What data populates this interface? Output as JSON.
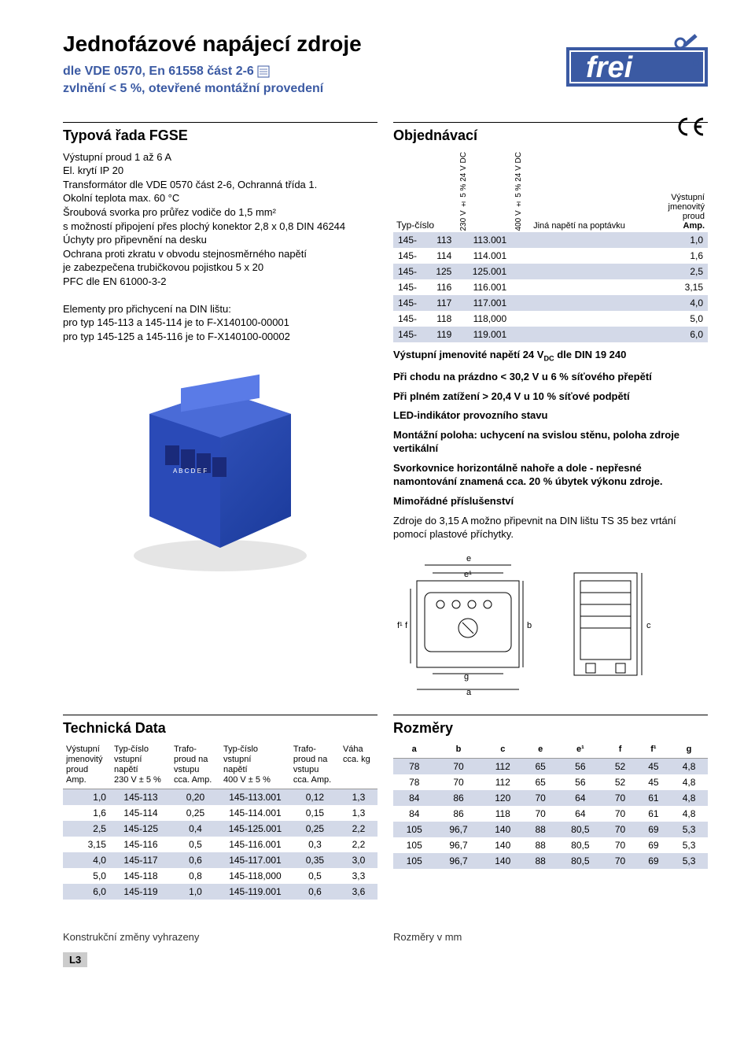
{
  "header": {
    "title": "Jednofázové napájecí zdroje",
    "subtitle1": "dle VDE 0570, En 61558 část 2-6",
    "subtitle2": "zvlnění < 5 %, otevřené montážní provedení"
  },
  "left": {
    "section_title": "Typová řada FGSE",
    "lines": [
      "Výstupní proud 1 až 6 A",
      "El. krytí IP 20",
      "Transformátor dle VDE 0570 část 2-6, Ochranná třída 1.",
      "Okolní teplota max. 60 °C",
      "Šroubová svorka pro průřez vodiče do 1,5 mm²",
      "s možností připojení přes plochý konektor 2,8 x 0,8 DIN 46244",
      "Úchyty pro připevnění na desku",
      "Ochrana proti zkratu v obvodu stejnosměrného napětí",
      "je zabezpečena trubičkovou pojistkou 5 x 20",
      "PFC dle EN 61000-3-2",
      "",
      "Elementy pro přichycení na DIN lištu:",
      "pro typ 145-113 a 145-114 je to F-X140100-00001",
      "pro typ 145-125 a 145-116 je to F-X140100-00002"
    ]
  },
  "right": {
    "section_title": "Objednávací",
    "order_headers": {
      "type": "Typ-číslo",
      "c1": "230 V ± 5 % 24 V DC",
      "c2": "400 V ± 5 % 24 V DC",
      "c3": "Jiná napětí na poptávku",
      "c4_l1": "Výstupní",
      "c4_l2": "jmenovitý",
      "c4_l3": "proud",
      "c4_l4": "Amp."
    },
    "rows": [
      {
        "p": "145-",
        "a": "113",
        "b": "113.001",
        "c": "",
        "amp": "1,0"
      },
      {
        "p": "145-",
        "a": "114",
        "b": "114.001",
        "c": "",
        "amp": "1,6"
      },
      {
        "p": "145-",
        "a": "125",
        "b": "125.001",
        "c": "",
        "amp": "2,5"
      },
      {
        "p": "145-",
        "a": "116",
        "b": "116.001",
        "c": "",
        "amp": "3,15"
      },
      {
        "p": "145-",
        "a": "117",
        "b": "117.001",
        "c": "",
        "amp": "4,0"
      },
      {
        "p": "145-",
        "a": "118",
        "b": "118,000",
        "c": "",
        "amp": "5,0"
      },
      {
        "p": "145-",
        "a": "119",
        "b": "119.001",
        "c": "",
        "amp": "6,0"
      }
    ],
    "notes": [
      {
        "bold": true,
        "text": "Výstupní jmenovité napětí 24 V_DC dle DIN 19 240"
      },
      {
        "bold": true,
        "text": "Při chodu na prázdno < 30,2 V u 6 % síťového přepětí"
      },
      {
        "bold": true,
        "text": "Při plném zatížení  > 20,4 V u 10 % síťové podpětí"
      },
      {
        "bold": true,
        "text": "LED-indikátor provozního stavu"
      },
      {
        "bold": true,
        "text": "Montážní poloha: uchycení na svislou stěnu, poloha zdroje vertikální"
      },
      {
        "bold": true,
        "text": "Svorkovnice horizontálně nahoře a dole - nepřesné namontování znamená cca. 20 % úbytek výkonu zdroje."
      },
      {
        "bold": true,
        "text": "Mimořádné příslušenství"
      },
      {
        "bold": false,
        "text": "Zdroje do 3,15 A možno připevnit na DIN lištu TS 35 bez vrtání pomocí plastové příchytky."
      }
    ]
  },
  "tech": {
    "title": "Technická Data",
    "headers": [
      "Výstupní\njmenovitý\nproud\nAmp.",
      "Typ-číslo\nvstupní\nnapětí\n230 V ± 5 %",
      "Trafo-\nproud na\nvstupu\ncca. Amp.",
      "Typ-číslo\nvstupní\nnapětí\n400 V ± 5 %",
      "Trafo-\nproud na\nvstupu\ncca. Amp.",
      "Váha\ncca. kg"
    ],
    "rows": [
      [
        "1,0",
        "145-113",
        "0,20",
        "145-113.001",
        "0,12",
        "1,3"
      ],
      [
        "1,6",
        "145-114",
        "0,25",
        "145-114.001",
        "0,15",
        "1,3"
      ],
      [
        "2,5",
        "145-125",
        "0,4",
        "145-125.001",
        "0,25",
        "2,2"
      ],
      [
        "3,15",
        "145-116",
        "0,5",
        "145-116.001",
        "0,3",
        "2,2"
      ],
      [
        "4,0",
        "145-117",
        "0,6",
        "145-117.001",
        "0,35",
        "3,0"
      ],
      [
        "5,0",
        "145-118",
        "0,8",
        "145-118,000",
        "0,5",
        "3,3"
      ],
      [
        "6,0",
        "145-119",
        "1,0",
        "145-119.001",
        "0,6",
        "3,6"
      ]
    ]
  },
  "dims": {
    "title": "Rozměry",
    "headers": [
      "a",
      "b",
      "c",
      "e",
      "e¹",
      "f",
      "f¹",
      "g"
    ],
    "rows": [
      [
        "78",
        "70",
        "112",
        "65",
        "56",
        "52",
        "45",
        "4,8"
      ],
      [
        "78",
        "70",
        "112",
        "65",
        "56",
        "52",
        "45",
        "4,8"
      ],
      [
        "84",
        "86",
        "120",
        "70",
        "64",
        "70",
        "61",
        "4,8"
      ],
      [
        "84",
        "86",
        "118",
        "70",
        "64",
        "70",
        "61",
        "4,8"
      ],
      [
        "105",
        "96,7",
        "140",
        "88",
        "80,5",
        "70",
        "69",
        "5,3"
      ],
      [
        "105",
        "96,7",
        "140",
        "88",
        "80,5",
        "70",
        "69",
        "5,3"
      ],
      [
        "105",
        "96,7",
        "140",
        "88",
        "80,5",
        "70",
        "69",
        "5,3"
      ]
    ]
  },
  "footer": {
    "left": "Konstrukční změny vyhrazeny",
    "right": "Rozměry v mm",
    "page": "L3"
  },
  "colors": {
    "subtitle": "#3b5aa3",
    "band": "#d3d9e8"
  },
  "diagram_labels": {
    "e": "e",
    "e1": "e¹",
    "f": "f",
    "f1": "f¹",
    "g": "g",
    "a": "a",
    "b": "b",
    "c": "c"
  }
}
